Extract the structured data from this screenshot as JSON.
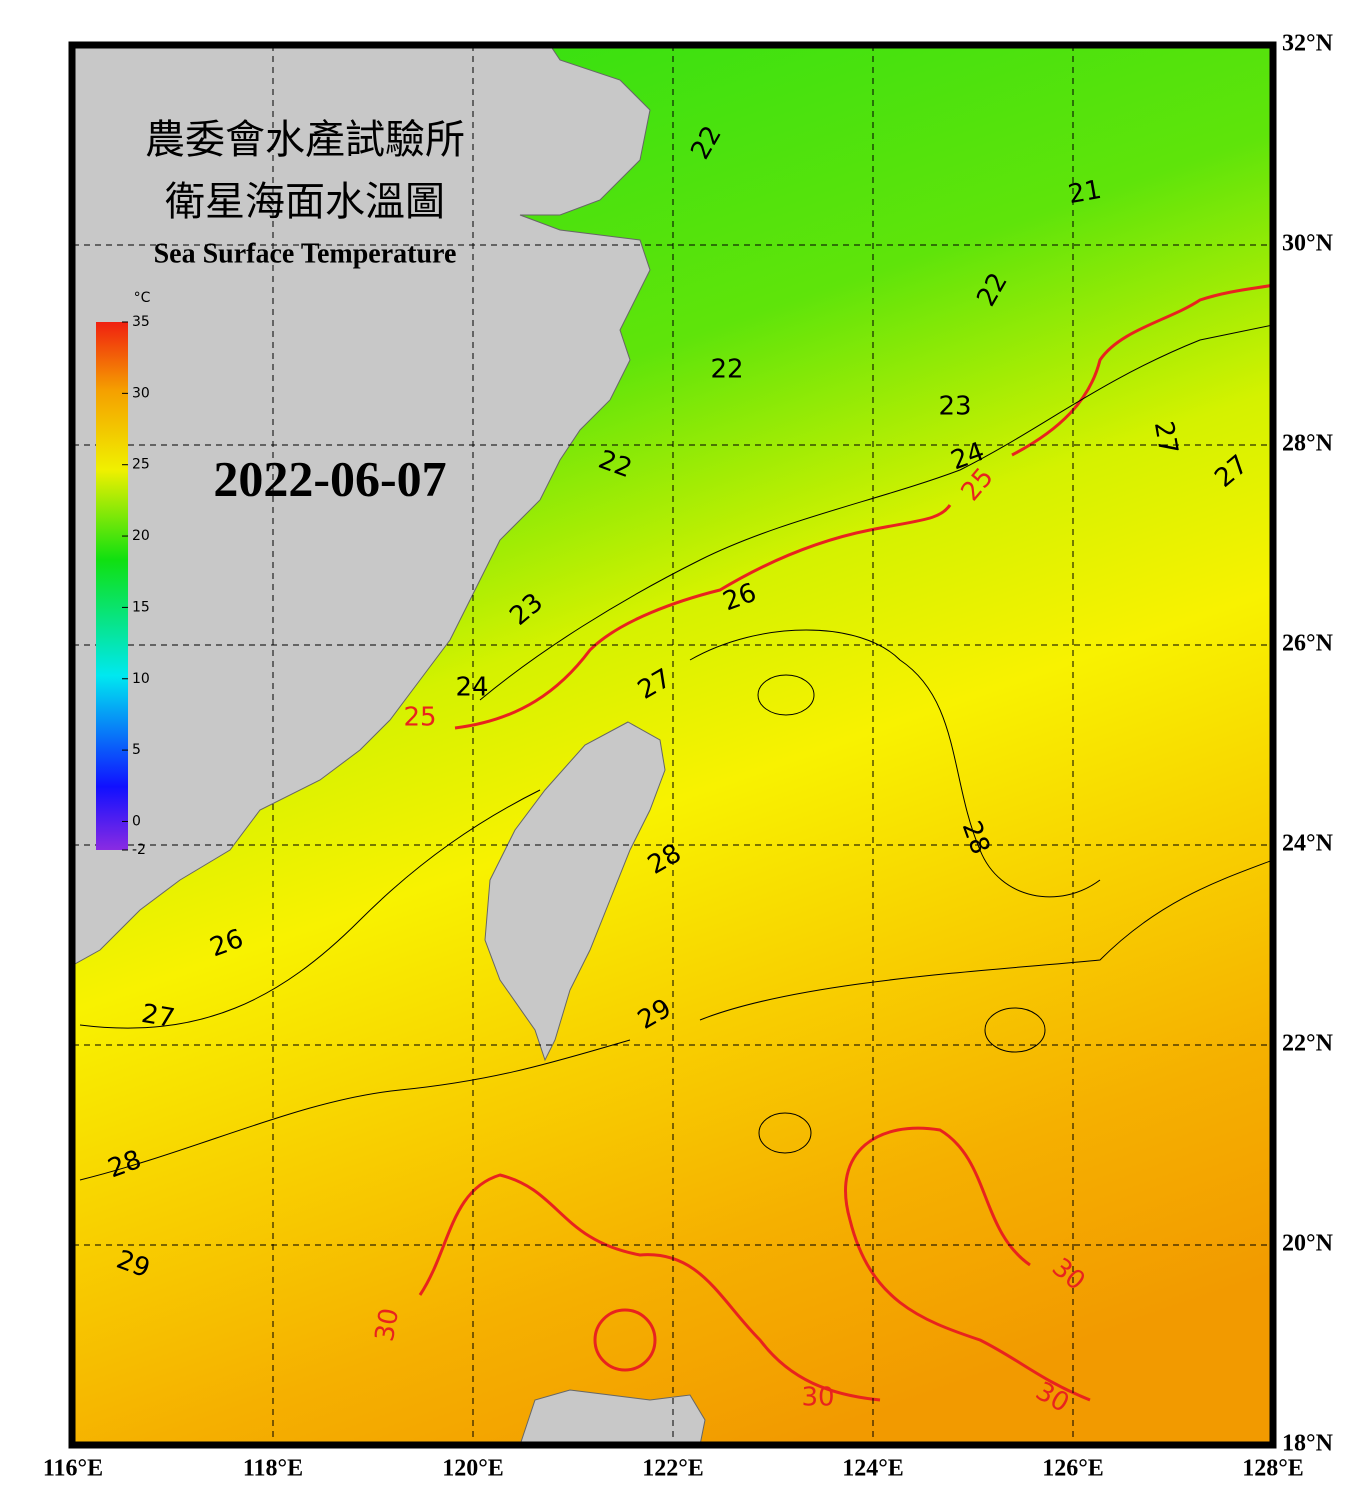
{
  "header": {
    "title_zh_1": "農委會水產試驗所",
    "title_zh_2": "衛星海面水溫圖",
    "title_en": "Sea Surface Temperature",
    "date": "2022-06-07"
  },
  "map": {
    "lonlim": [
      116,
      128
    ],
    "latlim": [
      18,
      32
    ],
    "lon_ticks": [
      {
        "value": 116,
        "label": "116°E"
      },
      {
        "value": 118,
        "label": "118°E"
      },
      {
        "value": 120,
        "label": "120°E"
      },
      {
        "value": 122,
        "label": "122°E"
      },
      {
        "value": 124,
        "label": "124°E"
      },
      {
        "value": 126,
        "label": "126°E"
      },
      {
        "value": 128,
        "label": "128°E"
      }
    ],
    "lat_ticks": [
      {
        "value": 18,
        "label": "18°N"
      },
      {
        "value": 20,
        "label": "20°N"
      },
      {
        "value": 22,
        "label": "22°N"
      },
      {
        "value": 24,
        "label": "24°N"
      },
      {
        "value": 26,
        "label": "26°N"
      },
      {
        "value": 28,
        "label": "28°N"
      },
      {
        "value": 30,
        "label": "30°N"
      },
      {
        "value": 32,
        "label": "32°N"
      }
    ],
    "grid": true,
    "contour_labels": [
      22,
      21,
      22,
      22,
      23,
      24,
      25,
      22,
      23,
      26,
      27,
      24,
      25,
      28,
      28,
      27,
      27,
      26,
      27,
      29,
      28,
      29,
      30,
      30,
      30,
      30
    ],
    "major_contour_every": 5,
    "major_color": "#e8231e",
    "minor_color": "#000000"
  },
  "colorbar": {
    "unit": "°C",
    "range": [
      -2,
      35
    ],
    "ticks": [
      -2,
      0,
      5,
      10,
      15,
      20,
      25,
      30,
      35
    ]
  }
}
